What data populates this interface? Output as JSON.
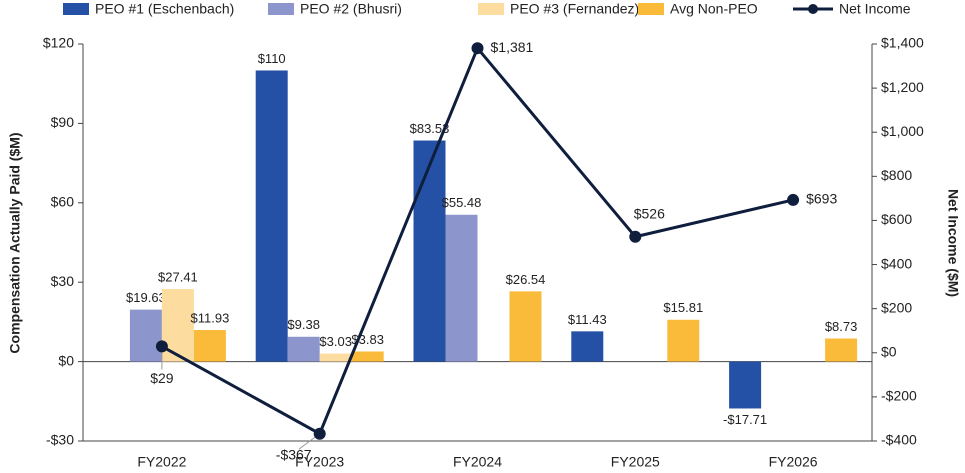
{
  "chart_data": {
    "type": "bar",
    "y_label": "Compensation Actually Paid ($M)",
    "y2_label": "Net Income ($M)",
    "categories": [
      "FY2022",
      "FY2023",
      "FY2024",
      "FY2025",
      "FY2026"
    ],
    "series": [
      {
        "name": "PEO #1 (Eschenbach)",
        "color": "#2451a6",
        "values": [
          null,
          110,
          83.53,
          11.43,
          -17.71
        ],
        "value_labels": [
          null,
          "$110",
          "$83.53",
          "$11.43",
          "-$17.71"
        ]
      },
      {
        "name": "PEO #2 (Bhusri)",
        "color": "#8d96cc",
        "values": [
          19.63,
          9.38,
          55.48,
          null,
          null
        ],
        "value_labels": [
          "$19.63",
          "$9.38",
          "$55.48",
          null,
          null
        ]
      },
      {
        "name": "PEO #3 (Fernandez)",
        "color": "#fddca0",
        "values": [
          27.41,
          3.03,
          null,
          null,
          null
        ],
        "value_labels": [
          "$27.41",
          "$3.03",
          null,
          null,
          null
        ]
      },
      {
        "name": "Avg Non-PEO",
        "color": "#fbbb3a",
        "values": [
          11.93,
          3.83,
          26.54,
          15.81,
          8.73
        ],
        "value_labels": [
          "$11.93",
          "$3.83",
          "$26.54",
          "$15.81",
          "$8.73"
        ]
      },
      {
        "name": "Net Income",
        "type": "line",
        "axis": "y2",
        "color": "#0f1e3d",
        "values": [
          29,
          -367,
          1381,
          526,
          693
        ],
        "value_labels": [
          "$29",
          "-$367",
          "$1,381",
          "$526",
          "$693"
        ]
      }
    ],
    "ylim": [
      -30,
      120
    ],
    "yticks": [
      {
        "value": -30,
        "label": "-$30"
      },
      {
        "value": 0,
        "label": "$0"
      },
      {
        "value": 30,
        "label": "$30"
      },
      {
        "value": 60,
        "label": "$60"
      },
      {
        "value": 90,
        "label": "$90"
      },
      {
        "value": 120,
        "label": "$120"
      }
    ],
    "y2lim": [
      -400,
      1400
    ],
    "y2ticks": [
      {
        "value": -400,
        "label": "-$400"
      },
      {
        "value": -200,
        "label": "-$200"
      },
      {
        "value": 0,
        "label": "$0"
      },
      {
        "value": 200,
        "label": "$200"
      },
      {
        "value": 400,
        "label": "$400"
      },
      {
        "value": 600,
        "label": "$600"
      },
      {
        "value": 800,
        "label": "$800"
      },
      {
        "value": 1000,
        "label": "$1,000"
      },
      {
        "value": 1200,
        "label": "$1,200"
      },
      {
        "value": 1400,
        "label": "$1,400"
      }
    ],
    "legend": "top",
    "grid": false
  }
}
